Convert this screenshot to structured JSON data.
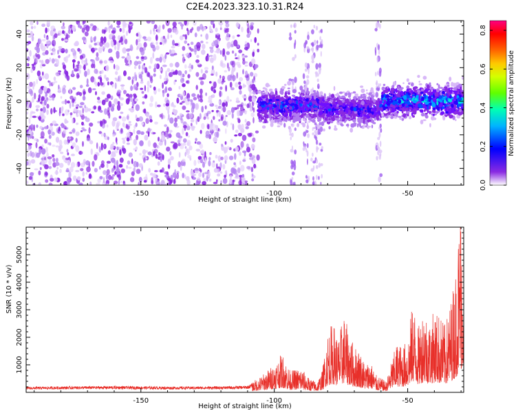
{
  "title": "C2E4.2023.323.10.31.R24",
  "chart_data": [
    {
      "type": "heatmap",
      "xlabel": "Height of straight line (km)",
      "ylabel": "Frequency (Hz)",
      "xlim": [
        -193,
        -29
      ],
      "ylim": [
        -50,
        48
      ],
      "xticks": [
        -150,
        -100,
        -50
      ],
      "yticks": [
        -40,
        -20,
        0,
        20,
        40
      ],
      "colorbar": {
        "label": "Normalized spectral amplitude",
        "range": [
          0.0,
          0.85
        ],
        "ticks": [
          "0.0",
          "0.2",
          "0.4",
          "0.6",
          "0.8"
        ],
        "colormap": [
          "#ffffff",
          "#7b1fe8",
          "#0000ff",
          "#00c8ff",
          "#00ff80",
          "#80ff00",
          "#ffff00",
          "#ff8000",
          "#ff0000",
          "#ff0080"
        ]
      },
      "regions": [
        {
          "x_from": -193,
          "x_to": -106,
          "description": "broadband noise",
          "amplitude": 0.1
        },
        {
          "x_from": -106,
          "x_to": -83,
          "center_freq": -3,
          "amplitude": 0.35
        },
        {
          "x_from": -83,
          "x_to": -60,
          "center_freq": -5,
          "amplitude": 0.3
        },
        {
          "x_from": -60,
          "x_to": -29,
          "center_freq": 0,
          "amplitude": 0.45
        }
      ]
    },
    {
      "type": "line",
      "xlabel": "Height of straight line (km)",
      "ylabel": "SNR (10 * v/v)",
      "xlim": [
        -193,
        -29
      ],
      "ylim": [
        0,
        6000
      ],
      "xticks": [
        -150,
        -100,
        -50
      ],
      "yticks": [
        1000,
        2000,
        3000,
        4000,
        5000
      ],
      "series": [
        {
          "color": "#e8302a",
          "x": [
            -193,
            -180,
            -160,
            -140,
            -120,
            -110,
            -105,
            -100,
            -97,
            -94,
            -90,
            -87,
            -84,
            -82,
            -80,
            -78,
            -76,
            -74,
            -72,
            -70,
            -68,
            -66,
            -64,
            -62,
            -60,
            -58,
            -56,
            -54,
            -52,
            -50,
            -48,
            -46,
            -44,
            -42,
            -40,
            -38,
            -36,
            -34,
            -32,
            -30
          ],
          "y": [
            180,
            200,
            210,
            190,
            200,
            220,
            450,
            800,
            1100,
            600,
            700,
            400,
            300,
            600,
            1700,
            2000,
            1500,
            2200,
            1700,
            1300,
            1200,
            800,
            900,
            500,
            400,
            300,
            900,
            1400,
            1300,
            1500,
            2600,
            1800,
            2500,
            2000,
            2300,
            2200,
            1900,
            2500,
            3500,
            5600
          ]
        }
      ]
    }
  ]
}
